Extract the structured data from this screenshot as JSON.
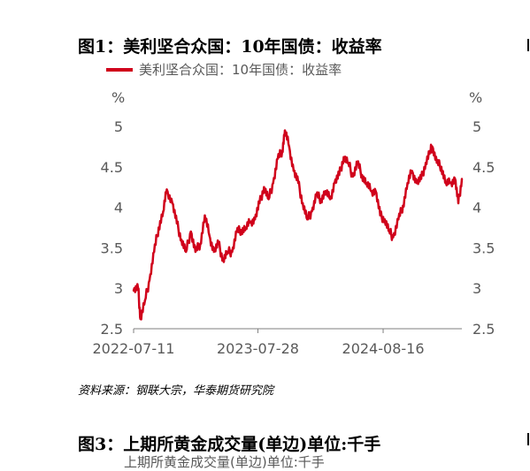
{
  "figure1": {
    "title": "图1：美利坚合众国：10年国债：收益率",
    "source": "资料来源：钢联大宗，华泰期货研究院"
  },
  "figure3": {
    "title": "图3：上期所黄金成交量(单边)单位:千手",
    "legend_partial": "上期所黄金成交量(单边)单位:千手"
  },
  "chart_data": {
    "type": "line",
    "title": "",
    "xlabel": "",
    "ylabel": "%",
    "ylabel_right": "%",
    "ylim": [
      2.5,
      5
    ],
    "yticks": [
      "5",
      "4.5",
      "4",
      "3.5",
      "3",
      "2.5"
    ],
    "xticks": [
      "2022-07-11",
      "2023-07-28",
      "2024-08-16"
    ],
    "xlim": [
      "2022-07-11",
      "2025-04-15"
    ],
    "grid": false,
    "legend_position": "top-left",
    "series": [
      {
        "name": "美利坚合众国：10年国债：收益率",
        "color": "#d0021b",
        "x": [
          "2022-07-11",
          "2022-07-25",
          "2022-08-01",
          "2022-08-15",
          "2022-08-29",
          "2022-09-12",
          "2022-09-26",
          "2022-10-10",
          "2022-10-21",
          "2022-11-07",
          "2022-11-21",
          "2022-12-05",
          "2022-12-19",
          "2023-01-03",
          "2023-01-17",
          "2023-02-01",
          "2023-02-15",
          "2023-03-01",
          "2023-03-15",
          "2023-03-29",
          "2023-04-12",
          "2023-04-26",
          "2023-05-10",
          "2023-05-24",
          "2023-06-07",
          "2023-06-21",
          "2023-07-05",
          "2023-07-19",
          "2023-08-02",
          "2023-08-16",
          "2023-08-30",
          "2023-09-13",
          "2023-09-27",
          "2023-10-11",
          "2023-10-19",
          "2023-11-01",
          "2023-11-15",
          "2023-11-29",
          "2023-12-13",
          "2023-12-27",
          "2024-01-10",
          "2024-01-24",
          "2024-02-07",
          "2024-02-21",
          "2024-03-06",
          "2024-03-20",
          "2024-04-03",
          "2024-04-17",
          "2024-05-01",
          "2024-05-15",
          "2024-05-29",
          "2024-06-12",
          "2024-06-26",
          "2024-07-10",
          "2024-07-24",
          "2024-08-07",
          "2024-08-21",
          "2024-09-04",
          "2024-09-16",
          "2024-10-02",
          "2024-10-16",
          "2024-10-30",
          "2024-11-13",
          "2024-11-27",
          "2024-12-11",
          "2024-12-25",
          "2025-01-08",
          "2025-01-14",
          "2025-01-28",
          "2025-02-11",
          "2025-02-25",
          "2025-03-11",
          "2025-03-25",
          "2025-04-04",
          "2025-04-15"
        ],
        "values": [
          2.97,
          3.0,
          2.62,
          2.85,
          3.1,
          3.45,
          3.75,
          3.95,
          4.22,
          4.05,
          3.8,
          3.6,
          3.45,
          3.7,
          3.45,
          3.55,
          3.9,
          3.65,
          3.45,
          3.55,
          3.35,
          3.45,
          3.45,
          3.7,
          3.72,
          3.75,
          3.82,
          3.85,
          4.05,
          4.25,
          4.1,
          4.3,
          4.6,
          4.7,
          4.95,
          4.75,
          4.45,
          4.3,
          4.05,
          3.85,
          3.95,
          4.15,
          4.1,
          4.2,
          4.1,
          4.3,
          4.4,
          4.62,
          4.55,
          4.38,
          4.55,
          4.4,
          4.3,
          4.2,
          4.2,
          3.9,
          3.85,
          3.7,
          3.63,
          3.85,
          4.02,
          4.3,
          4.45,
          4.3,
          4.35,
          4.55,
          4.7,
          4.75,
          4.55,
          4.5,
          4.3,
          4.3,
          4.35,
          4.05,
          4.35
        ]
      }
    ]
  }
}
